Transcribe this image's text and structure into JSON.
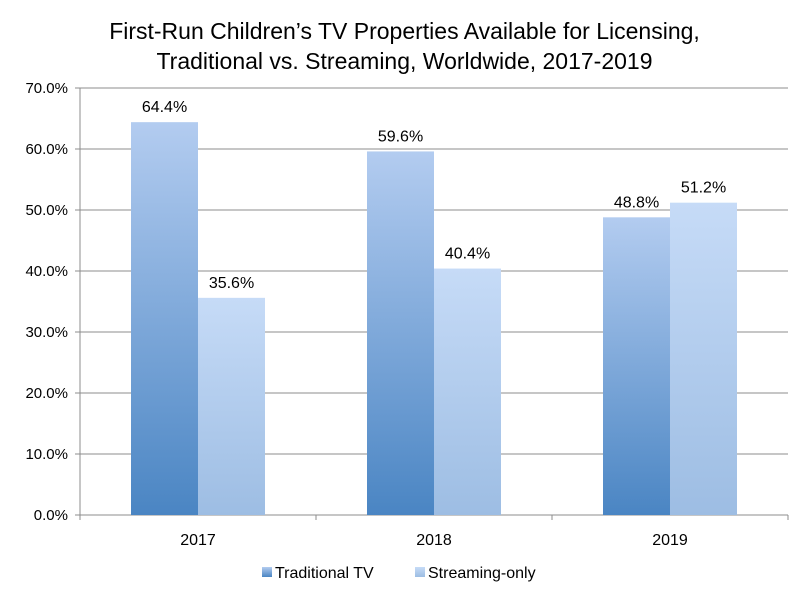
{
  "chart_data": {
    "type": "bar",
    "title": "First-Run Children’s TV Properties Available for Licensing, Traditional vs. Streaming, Worldwide, 2017-2019",
    "title_lines": [
      "First-Run Children’s TV Properties Available for Licensing,",
      "Traditional vs. Streaming, Worldwide, 2017-2019"
    ],
    "categories": [
      "2017",
      "2018",
      "2019"
    ],
    "series": [
      {
        "name": "Traditional TV",
        "values": [
          64.4,
          59.6,
          48.8
        ],
        "labels": [
          "64.4%",
          "59.6%",
          "48.8%"
        ],
        "color_top": "#b3ccf0",
        "color_bottom": "#4a85c3"
      },
      {
        "name": "Streaming-only",
        "values": [
          35.6,
          40.4,
          51.2
        ],
        "labels": [
          "35.6%",
          "40.4%",
          "51.2%"
        ],
        "color_top": "#c6dbf7",
        "color_bottom": "#9dbde3"
      }
    ],
    "yticks": [
      "0.0%",
      "10.0%",
      "20.0%",
      "30.0%",
      "40.0%",
      "50.0%",
      "60.0%",
      "70.0%"
    ],
    "ylim": [
      0,
      70
    ],
    "xlabel": "",
    "ylabel": "",
    "grid": true,
    "legend_position": "bottom"
  }
}
